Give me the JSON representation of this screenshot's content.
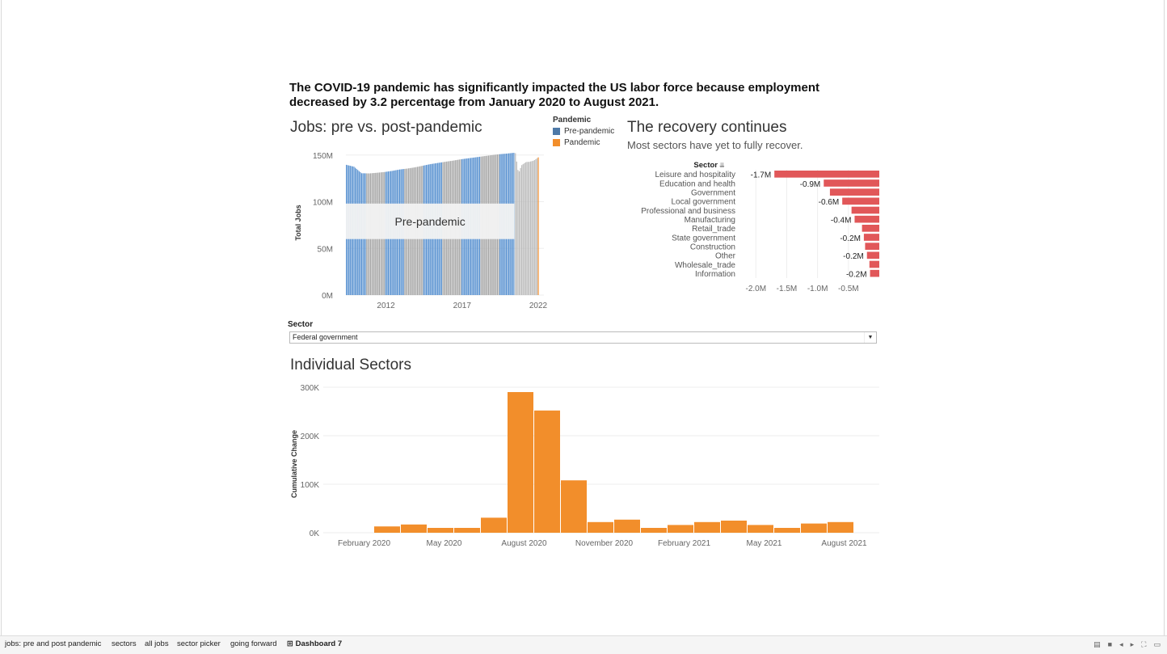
{
  "headline": "The COVID-19 pandemic has significantly impacted the US labor force because employment decreased by 3.2 percentage from January 2020 to August 2021.",
  "colors": {
    "pre": "#5b93d1",
    "pre_legend": "#4e79a7",
    "pandemic": "#f28e2b",
    "gray": "#a9a9a9",
    "sector_bar": "#e15759"
  },
  "jobs_chart": {
    "title": "Jobs: pre vs. post-pandemic",
    "legend": {
      "title": "Pandemic",
      "items": [
        "Pre-pandemic",
        "Pandemic"
      ]
    },
    "annotation": "Pre-pandemic",
    "ylabel": "Total Jobs",
    "yticks": [
      "0M",
      "50M",
      "100M",
      "150M"
    ],
    "xticks": [
      "2012",
      "2017",
      "2022"
    ]
  },
  "recovery_chart": {
    "title": "The recovery continues",
    "subtitle": "Most sectors have yet to fully recover.",
    "sector_header": "Sector",
    "xticks": [
      "-2.0M",
      "-1.5M",
      "-1.0M",
      "-0.5M"
    ]
  },
  "sector_picker": {
    "label": "Sector",
    "value": "Federal government"
  },
  "individual_chart": {
    "title": "Individual Sectors",
    "ylabel": "Cumulative Change",
    "yticks": [
      "0K",
      "100K",
      "200K",
      "300K"
    ],
    "xticks": [
      "February 2020",
      "May 2020",
      "August 2020",
      "November 2020",
      "February 2021",
      "May 2021",
      "August 2021"
    ]
  },
  "chart_data": [
    {
      "type": "bar",
      "title": "Jobs: pre vs. post-pandemic",
      "ylabel": "Total Jobs",
      "x_range": [
        2009,
        2022
      ],
      "ylim": [
        0,
        155000000
      ],
      "series": [
        {
          "name": "Pre-pandemic",
          "x": [
            2009.0,
            2009.5,
            2010.0,
            2010.5,
            2011.0,
            2011.5,
            2012.0,
            2012.5,
            2013.0,
            2013.5,
            2014.0,
            2014.5,
            2015.0,
            2015.5,
            2016.0,
            2016.5,
            2017.0,
            2017.5,
            2018.0,
            2018.5,
            2019.0,
            2019.5,
            2020.0
          ],
          "values": [
            139500000,
            137500000,
            130500000,
            130300000,
            131000000,
            131800000,
            133000000,
            134500000,
            135500000,
            136800000,
            138500000,
            140200000,
            141500000,
            142800000,
            144000000,
            145400000,
            146500000,
            147600000,
            148700000,
            149800000,
            150800000,
            151500000,
            152400000
          ]
        },
        {
          "name": "Pandemic",
          "x": [
            2020.1,
            2020.3,
            2020.5,
            2020.8,
            2021.0,
            2021.3,
            2021.6
          ],
          "values": [
            152000000,
            130400000,
            139000000,
            142600000,
            142700000,
            144000000,
            147500000
          ]
        }
      ]
    },
    {
      "type": "bar",
      "title": "The recovery continues",
      "subtitle": "Most sectors have yet to fully recover.",
      "orientation": "horizontal",
      "categories": [
        "Leisure and hospitality",
        "Education and health",
        "Government",
        "Local government",
        "Professional and business",
        "Manufacturing",
        "Retail_trade",
        "State government",
        "Construction",
        "Other",
        "Wholesale_trade",
        "Information"
      ],
      "values": [
        -1700000,
        -900000,
        -800000,
        -600000,
        -450000,
        -400000,
        -280000,
        -250000,
        -230000,
        -200000,
        -160000,
        -150000
      ],
      "data_labels": [
        "-1.7M",
        "-0.9M",
        "",
        "-0.6M",
        "",
        "-0.4M",
        "",
        "-0.2M",
        "",
        "-0.2M",
        "",
        "-0.2M"
      ],
      "xlim": [
        -2200000,
        0
      ]
    },
    {
      "type": "bar",
      "title": "Individual Sectors",
      "ylabel": "Cumulative Change",
      "categories": [
        "2020-02",
        "2020-03",
        "2020-04",
        "2020-05",
        "2020-06",
        "2020-07",
        "2020-08",
        "2020-09",
        "2020-10",
        "2020-11",
        "2020-12",
        "2021-01",
        "2021-02",
        "2021-03",
        "2021-04",
        "2021-05",
        "2021-06",
        "2021-07",
        "2021-08",
        "2021-09"
      ],
      "values": [
        0,
        13000,
        17000,
        10000,
        10000,
        31000,
        290000,
        252000,
        108000,
        22000,
        27000,
        10000,
        16000,
        22000,
        25000,
        16000,
        10000,
        19000,
        22000,
        0
      ],
      "ylim": [
        0,
        300000
      ]
    }
  ]
}
